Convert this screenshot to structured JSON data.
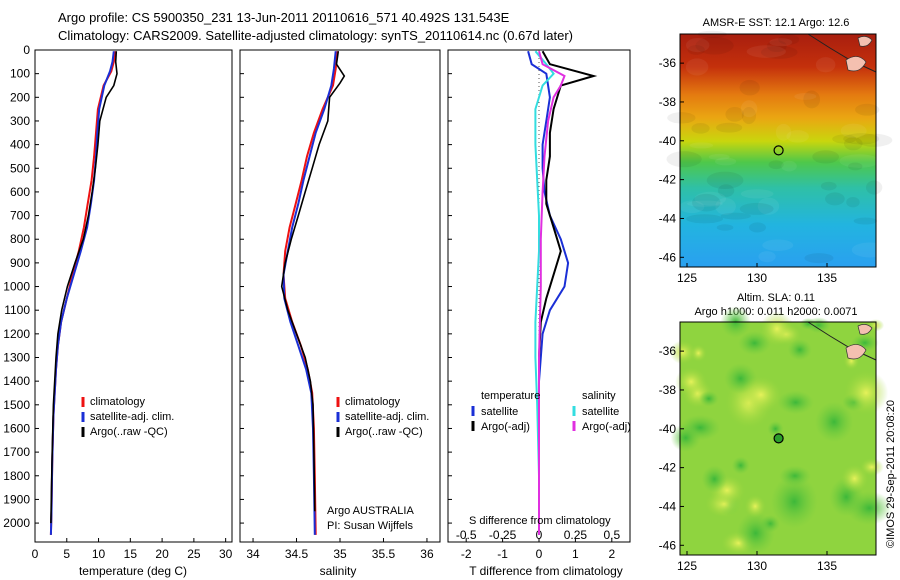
{
  "header": {
    "line1": "Argo profile: CS 5900350_231 13-Jun-2011 20110616_571 40.492S 131.543E",
    "line2": "Climatology: CARS2009. Satellite-adjusted climatology: synTS_20110614.nc (0.67d later)"
  },
  "colors": {
    "climatology": "#e11",
    "satellite": "#1a2fd6",
    "argo": "#000000",
    "sal_satellite": "#33dde0",
    "sal_argo": "#e030e0"
  },
  "chart_data": [
    {
      "type": "line",
      "panel": "temperature",
      "xlabel": "temperature (deg C)",
      "ylabel": "",
      "xlim": [
        0,
        31
      ],
      "ylim": [
        2080,
        0
      ],
      "xticks": [
        "0",
        "5",
        "10",
        "15",
        "20",
        "25",
        "30"
      ],
      "yticks": [
        "0",
        "100",
        "200",
        "300",
        "400",
        "500",
        "600",
        "700",
        "800",
        "900",
        "1000",
        "1100",
        "1200",
        "1300",
        "1400",
        "1500",
        "1600",
        "1700",
        "1800",
        "1900",
        "2000"
      ],
      "legend": [
        "climatology",
        "satellite-adj. clim.",
        "Argo(..raw -QC)"
      ],
      "series": [
        {
          "name": "climatology",
          "x": [
            12.6,
            12.4,
            12.0,
            10.8,
            9.9,
            9.6,
            9.3,
            8.9,
            8.3,
            7.7,
            6.9,
            5.9,
            5.0,
            4.1,
            3.6,
            3.3,
            3.1,
            2.9,
            2.8,
            2.7,
            2.6,
            2.5
          ],
          "y": [
            5,
            50,
            90,
            150,
            250,
            350,
            450,
            550,
            650,
            750,
            850,
            950,
            1050,
            1150,
            1250,
            1350,
            1450,
            1550,
            1650,
            1750,
            1950,
            2050
          ]
        },
        {
          "name": "satellite-adj. clim.",
          "x": [
            12.4,
            12.2,
            11.8,
            10.9,
            10.1,
            9.8,
            9.6,
            9.3,
            8.8,
            8.2,
            7.2,
            6.1,
            5.0,
            4.1,
            3.6,
            3.3,
            3.1,
            2.9,
            2.8,
            2.7,
            2.6,
            2.5
          ],
          "y": [
            5,
            50,
            90,
            150,
            250,
            350,
            450,
            550,
            650,
            750,
            850,
            950,
            1050,
            1150,
            1250,
            1350,
            1450,
            1550,
            1650,
            1750,
            1950,
            2050
          ]
        },
        {
          "name": "Argo(..raw -QC)",
          "x": [
            12.8,
            12.7,
            12.9,
            12.4,
            11.2,
            10.2,
            9.9,
            9.5,
            9.0,
            8.4,
            7.6,
            6.3,
            5.1,
            4.2,
            3.6,
            3.3,
            3.1,
            2.9,
            2.8,
            2.7,
            2.6,
            2.5
          ],
          "y": [
            5,
            50,
            100,
            150,
            200,
            300,
            400,
            500,
            600,
            700,
            800,
            900,
            1000,
            1100,
            1200,
            1300,
            1400,
            1500,
            1600,
            1700,
            1850,
            2000
          ]
        }
      ]
    },
    {
      "type": "line",
      "panel": "salinity",
      "xlabel": "salinity",
      "ylabel": "",
      "xlim": [
        33.85,
        36.15
      ],
      "ylim": [
        2080,
        0
      ],
      "xticks": [
        "34",
        "34.5",
        "35",
        "35.5",
        "36"
      ],
      "legend": [
        "climatology",
        "satellite-adj. clim.",
        "Argo(..raw -QC)"
      ],
      "annotation": [
        "Argo AUSTRALIA",
        "PI: Susan Wijffels"
      ],
      "series": [
        {
          "name": "climatology",
          "x": [
            34.97,
            34.95,
            34.92,
            34.8,
            34.7,
            34.62,
            34.56,
            34.49,
            34.42,
            34.37,
            34.35,
            34.37,
            34.45,
            34.55,
            34.63,
            34.68,
            34.7,
            34.71,
            34.72
          ],
          "y": [
            5,
            80,
            150,
            250,
            350,
            450,
            550,
            650,
            750,
            850,
            950,
            1050,
            1150,
            1250,
            1350,
            1450,
            1600,
            1800,
            2050
          ]
        },
        {
          "name": "satellite-adj. clim.",
          "x": [
            34.95,
            34.93,
            34.9,
            34.82,
            34.72,
            34.65,
            34.58,
            34.52,
            34.45,
            34.4,
            34.35,
            34.36,
            34.43,
            34.52,
            34.61,
            34.67,
            34.69,
            34.7,
            34.71
          ],
          "y": [
            5,
            80,
            150,
            250,
            350,
            450,
            550,
            650,
            750,
            850,
            950,
            1050,
            1150,
            1250,
            1350,
            1450,
            1600,
            1800,
            2050
          ]
        },
        {
          "name": "Argo(..raw -QC)",
          "x": [
            34.98,
            34.96,
            35.05,
            35.0,
            34.88,
            34.86,
            34.76,
            34.68,
            34.6,
            34.52,
            34.44,
            34.37,
            34.33,
            34.4,
            34.5,
            34.6,
            34.66,
            34.69,
            34.7,
            34.71
          ],
          "y": [
            5,
            60,
            110,
            140,
            200,
            300,
            400,
            500,
            600,
            700,
            800,
            900,
            1000,
            1100,
            1200,
            1300,
            1400,
            1500,
            1700,
            1950
          ]
        }
      ]
    },
    {
      "type": "line",
      "panel": "differences",
      "xlabel": "T difference from climatology",
      "xlabel_top": "S difference from climatology",
      "xlim": [
        -2.5,
        2.5
      ],
      "ylim": [
        2080,
        0
      ],
      "xticks_T": [
        "-2",
        "-1",
        "0",
        "1",
        "2"
      ],
      "xticks_S": [
        "-0.5",
        "-0.25",
        "0",
        "0.25",
        "0.5"
      ],
      "legend": {
        "temperature": [
          "satellite",
          "Argo(-adj)"
        ],
        "salinity": [
          "satellite",
          "Argo(-adj)"
        ]
      },
      "series": [
        {
          "name": "temperature satellite",
          "x": [
            -0.3,
            -0.2,
            0.2,
            0.3,
            0.2,
            0.1,
            0.1,
            0.15,
            0.3,
            0.6,
            0.8,
            0.7,
            0.3,
            0.1,
            0.0,
            0.0,
            0.0,
            0.0
          ],
          "y": [
            5,
            60,
            100,
            200,
            300,
            400,
            500,
            600,
            700,
            800,
            900,
            1000,
            1100,
            1200,
            1400,
            1600,
            1800,
            2050
          ]
        },
        {
          "name": "temperature Argo(-adj)",
          "x": [
            0.1,
            0.3,
            1.5,
            0.6,
            0.4,
            0.3,
            0.3,
            0.2,
            0.2,
            0.4,
            0.6,
            0.4,
            0.2,
            0.05,
            0.0,
            0.0,
            0.0
          ],
          "y": [
            5,
            60,
            110,
            150,
            250,
            350,
            450,
            550,
            650,
            750,
            850,
            950,
            1050,
            1150,
            1300,
            1600,
            2050
          ]
        },
        {
          "name": "salinity satellite",
          "x": [
            -0.1,
            0.2,
            0.4,
            0.1,
            -0.1,
            -0.1,
            -0.05,
            0.0,
            0.0,
            -0.05,
            -0.1,
            -0.1,
            -0.05,
            0.0,
            0.0
          ],
          "y": [
            5,
            60,
            100,
            150,
            250,
            400,
            550,
            700,
            850,
            1000,
            1150,
            1300,
            1500,
            1800,
            2050
          ]
        },
        {
          "name": "salinity Argo(-adj)",
          "x": [
            0.0,
            0.1,
            0.7,
            0.6,
            0.4,
            0.25,
            0.15,
            0.1,
            0.05,
            0.05,
            0.0,
            0.0,
            0.0
          ],
          "y": [
            5,
            60,
            110,
            150,
            200,
            300,
            450,
            600,
            800,
            1000,
            1300,
            1600,
            2050
          ]
        }
      ]
    },
    {
      "type": "heatmap",
      "panel": "sst-map",
      "title": "AMSR-E SST: 12.1  Argo: 12.6",
      "xticks": [
        "125",
        "130",
        "135"
      ],
      "yticks": [
        "-36",
        "-38",
        "-40",
        "-42",
        "-44",
        "-46"
      ],
      "xlim": [
        124.5,
        138.5
      ],
      "ylim": [
        -46.5,
        -34.5
      ],
      "marker": {
        "lon": 131.543,
        "lat": -40.492
      }
    },
    {
      "type": "heatmap",
      "panel": "sla-map",
      "title_lines": [
        "Altim. SLA: 0.11",
        "Argo h1000: 0.011 h2000: 0.0071"
      ],
      "xticks": [
        "125",
        "130",
        "135"
      ],
      "yticks": [
        "-36",
        "-38",
        "-40",
        "-42",
        "-44",
        "-46"
      ],
      "xlim": [
        124.5,
        138.5
      ],
      "ylim": [
        -46.5,
        -34.5
      ],
      "marker": {
        "lon": 131.543,
        "lat": -40.492
      }
    }
  ],
  "footer": {
    "stamp": "©IMOS 29-Sep-2011 20:08:20"
  }
}
